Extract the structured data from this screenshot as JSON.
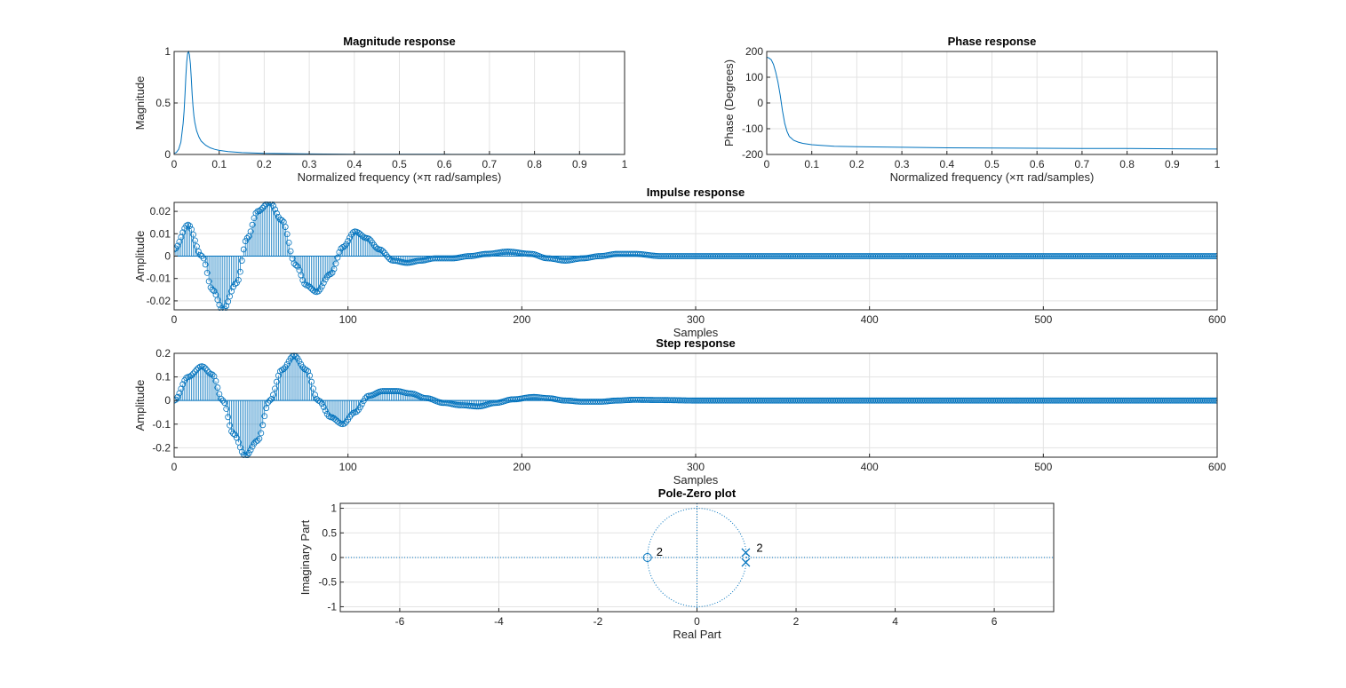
{
  "chart_data": [
    {
      "id": "mag",
      "type": "line",
      "title": "Magnitude response",
      "xlabel": "Normalized frequency (×π rad/samples)",
      "ylabel": "Magnitude",
      "xlim": [
        0,
        1
      ],
      "ylim": [
        0,
        1
      ],
      "xticks": [
        0,
        0.1,
        0.2,
        0.3,
        0.4,
        0.5,
        0.6,
        0.7,
        0.8,
        0.9,
        1
      ],
      "xtick_labels": [
        "0",
        "0.1",
        "0.2",
        "0.3",
        "0.4",
        "0.5",
        "0.6",
        "0.7",
        "0.8",
        "0.9",
        "1"
      ],
      "yticks": [
        0,
        0.5,
        1
      ],
      "ytick_labels": [
        "0",
        "0.5",
        "1"
      ],
      "grid": true,
      "color": "#0072BD",
      "series": [
        {
          "x": [
            0,
            0.005,
            0.01,
            0.015,
            0.02,
            0.022,
            0.024,
            0.026,
            0.028,
            0.03,
            0.032,
            0.034,
            0.036,
            0.038,
            0.04,
            0.042,
            0.044,
            0.046,
            0.05,
            0.055,
            0.06,
            0.07,
            0.08,
            0.09,
            0.1,
            0.12,
            0.15,
            0.2,
            0.3,
            0.4,
            0.5,
            0.6,
            0.7,
            0.8,
            0.9,
            0.99
          ],
          "y": [
            0.01,
            0.02,
            0.05,
            0.12,
            0.3,
            0.42,
            0.58,
            0.76,
            0.9,
            0.98,
            1.0,
            0.97,
            0.88,
            0.74,
            0.58,
            0.46,
            0.37,
            0.31,
            0.23,
            0.17,
            0.13,
            0.09,
            0.065,
            0.05,
            0.04,
            0.028,
            0.018,
            0.01,
            0.005,
            0.003,
            0.002,
            0.0015,
            0.001,
            0.001,
            0.001,
            0.001
          ]
        }
      ]
    },
    {
      "id": "phase",
      "type": "line",
      "title": "Phase response",
      "xlabel": "Normalized frequency (×π rad/samples)",
      "ylabel": "Phase (Degrees)",
      "xlim": [
        0,
        1
      ],
      "ylim": [
        -200,
        200
      ],
      "xticks": [
        0,
        0.1,
        0.2,
        0.3,
        0.4,
        0.5,
        0.6,
        0.7,
        0.8,
        0.9,
        1
      ],
      "xtick_labels": [
        "0",
        "0.1",
        "0.2",
        "0.3",
        "0.4",
        "0.5",
        "0.6",
        "0.7",
        "0.8",
        "0.9",
        "1"
      ],
      "yticks": [
        -200,
        -100,
        0,
        100,
        200
      ],
      "ytick_labels": [
        "-200",
        "-100",
        "0",
        "100",
        "200"
      ],
      "grid": true,
      "color": "#0072BD",
      "series": [
        {
          "x": [
            0,
            0.005,
            0.01,
            0.015,
            0.02,
            0.025,
            0.03,
            0.035,
            0.04,
            0.045,
            0.05,
            0.06,
            0.07,
            0.08,
            0.1,
            0.12,
            0.15,
            0.2,
            0.3,
            0.4,
            0.5,
            0.6,
            0.7,
            0.8,
            0.9,
            1
          ],
          "y": [
            178,
            175,
            168,
            150,
            120,
            80,
            30,
            -30,
            -80,
            -110,
            -130,
            -145,
            -152,
            -157,
            -162,
            -165,
            -168,
            -170,
            -172,
            -174,
            -175,
            -176,
            -177,
            -177,
            -178,
            -179
          ]
        }
      ]
    },
    {
      "id": "impulse",
      "type": "stem",
      "title": "Impulse response",
      "xlabel": "Samples",
      "ylabel": "Amplitude",
      "xlim": [
        0,
        600
      ],
      "ylim": [
        -0.024,
        0.024
      ],
      "xticks": [
        0,
        100,
        200,
        300,
        400,
        500,
        600
      ],
      "xtick_labels": [
        "0",
        "100",
        "200",
        "300",
        "400",
        "500",
        "600"
      ],
      "yticks": [
        -0.02,
        -0.01,
        0,
        0.01,
        0.02
      ],
      "ytick_labels": [
        "-0.02",
        "-0.01",
        "0",
        "0.01",
        "0.02"
      ],
      "grid": true,
      "color": "#0072BD",
      "series": [
        {
          "x": [
            0,
            8,
            16,
            22,
            28,
            36,
            42,
            48,
            55,
            62,
            70,
            76,
            82,
            90,
            97,
            104,
            111,
            118,
            126,
            134,
            142,
            150,
            160,
            170,
            180,
            192,
            205,
            215,
            225,
            235,
            245,
            255,
            265,
            280,
            300,
            330,
            360,
            400,
            450,
            500,
            550,
            600
          ],
          "y": [
            0.003,
            0.014,
            0.0,
            -0.015,
            -0.024,
            -0.012,
            0.008,
            0.02,
            0.024,
            0.016,
            -0.004,
            -0.013,
            -0.016,
            -0.008,
            0.004,
            0.011,
            0.008,
            0.003,
            -0.002,
            -0.003,
            -0.002,
            -0.001,
            -0.001,
            0.0,
            0.001,
            0.002,
            0.001,
            -0.001,
            -0.002,
            -0.001,
            0.0,
            0.001,
            0.001,
            0.0,
            0.0,
            0.0,
            0.0,
            0.0,
            0.0,
            0.0,
            0.0,
            0.0
          ]
        }
      ]
    },
    {
      "id": "step",
      "type": "stem",
      "title": "Step response",
      "xlabel": "Samples",
      "ylabel": "Amplitude",
      "xlim": [
        0,
        600
      ],
      "ylim": [
        -0.24,
        0.2
      ],
      "xticks": [
        0,
        100,
        200,
        300,
        400,
        500,
        600
      ],
      "xtick_labels": [
        "0",
        "100",
        "200",
        "300",
        "400",
        "500",
        "600"
      ],
      "yticks": [
        -0.2,
        -0.1,
        0,
        0.1,
        0.2
      ],
      "ytick_labels": [
        "-0.2",
        "-0.1",
        "0",
        "0.1",
        "0.2"
      ],
      "grid": true,
      "color": "#0072BD",
      "series": [
        {
          "x": [
            0,
            8,
            16,
            22,
            28,
            34,
            41,
            48,
            55,
            62,
            69,
            76,
            83,
            90,
            97,
            104,
            112,
            120,
            128,
            136,
            145,
            155,
            165,
            175,
            185,
            195,
            207,
            215,
            225,
            235,
            245,
            255,
            265,
            280,
            300,
            330,
            360,
            400,
            450,
            500,
            550,
            600
          ],
          "y": [
            0.0,
            0.1,
            0.145,
            0.11,
            0.0,
            -0.14,
            -0.235,
            -0.17,
            0.0,
            0.13,
            0.19,
            0.13,
            0.0,
            -0.07,
            -0.1,
            -0.05,
            0.02,
            0.04,
            0.04,
            0.03,
            0.01,
            -0.01,
            -0.02,
            -0.025,
            -0.01,
            0.005,
            0.015,
            0.01,
            0.0,
            -0.005,
            -0.005,
            0.0,
            0.003,
            0.002,
            0.0,
            0.0,
            0.0,
            0.0,
            0.0,
            0.0,
            0.0,
            0.0
          ]
        }
      ]
    },
    {
      "id": "pz",
      "type": "scatter",
      "title": "Pole-Zero plot",
      "xlabel": "Real Part",
      "ylabel": "Imaginary Part",
      "xlim": [
        -7.2,
        7.2
      ],
      "ylim": [
        -1.1,
        1.1
      ],
      "xticks": [
        -6,
        -4,
        -2,
        0,
        2,
        4,
        6
      ],
      "xtick_labels": [
        "-6",
        "-4",
        "-2",
        "0",
        "2",
        "4",
        "6"
      ],
      "yticks": [
        -1,
        -0.5,
        0,
        0.5,
        1
      ],
      "ytick_labels": [
        "-1",
        "-0.5",
        "0",
        "0.5",
        "1"
      ],
      "grid": true,
      "color": "#0072BD",
      "unit_circle": true,
      "zeros": [
        {
          "re": -1,
          "im": 0,
          "multiplicity": "2"
        }
      ],
      "poles": [
        {
          "re": 0.985,
          "im": 0.1,
          "multiplicity": "2"
        },
        {
          "re": 0.985,
          "im": -0.1,
          "multiplicity": ""
        }
      ]
    }
  ]
}
